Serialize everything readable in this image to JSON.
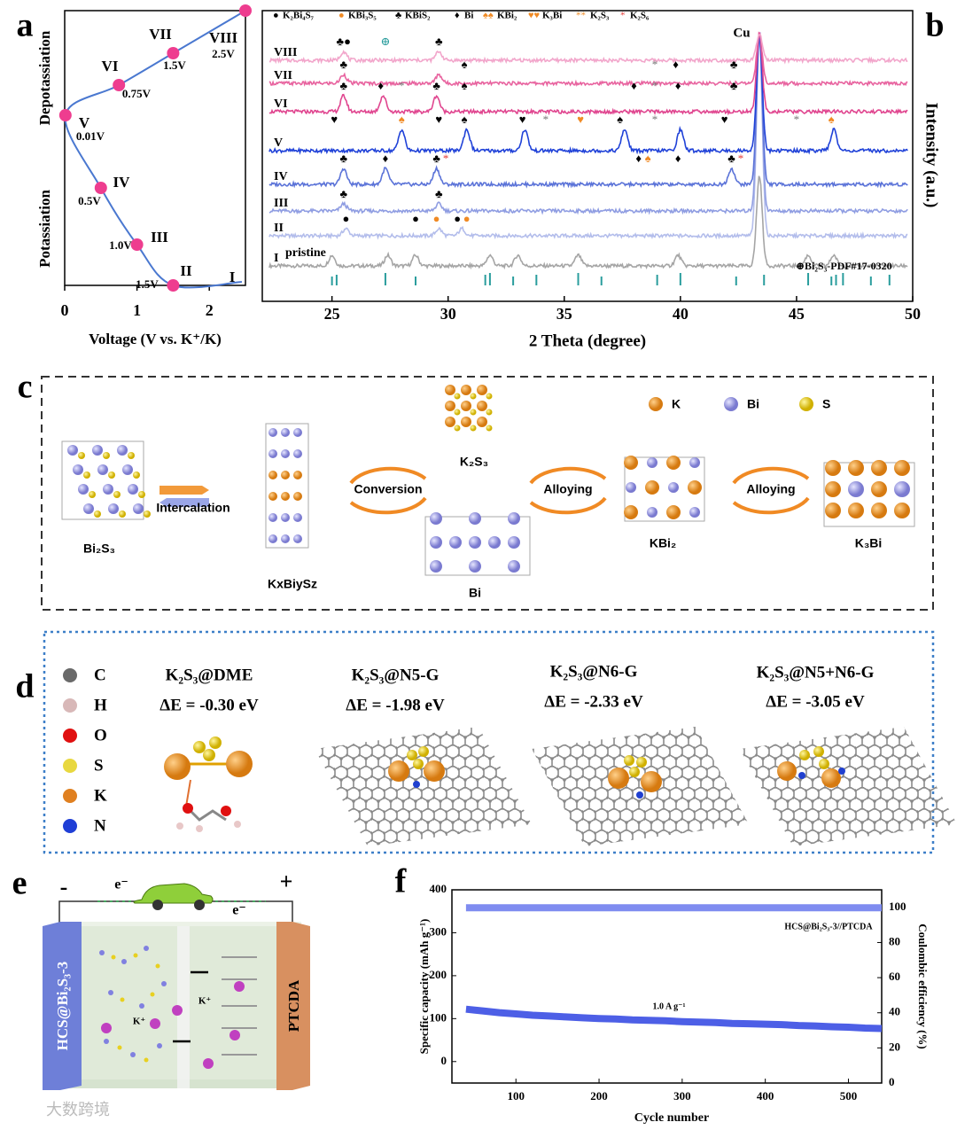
{
  "panel_labels": [
    "a",
    "b",
    "c",
    "d",
    "e",
    "f"
  ],
  "chart_data": [
    {
      "type": "line",
      "xlabel": "Voltage (V vs. K⁺/K)",
      "ylabel_top": "Depotassiation",
      "ylabel_bottom": "Potassiation",
      "categories": [
        "I",
        "II",
        "III",
        "IV",
        "V",
        "VI",
        "VII",
        "VIII"
      ],
      "x": [
        2.45,
        1.5,
        1.0,
        0.5,
        0.01,
        0.75,
        1.5,
        2.5
      ],
      "x_labels": [
        null,
        "1.5V",
        "1.0V",
        "0.5V",
        "0.01V",
        "0.75V",
        "1.5V",
        "2.5V"
      ],
      "xlim": [
        0,
        2.5
      ],
      "xticks": [
        0,
        1,
        2
      ],
      "color": "#4a78d0",
      "marker_color": "#ee3d8f"
    },
    {
      "type": "xrd",
      "xlabel": "2 Theta (degree)",
      "ylabel": "Intensity (a.u.)",
      "xlim": [
        22,
        50
      ],
      "xticks": [
        25,
        30,
        35,
        40,
        45,
        50
      ],
      "cu_peak": 43.4,
      "cu_label": "Cu",
      "pristine_label": "pristine",
      "series": [
        {
          "name": "I",
          "color": "#a5a5a5",
          "peaks": [
            25.0,
            27.4,
            28.6,
            31.8,
            33.0,
            35.6,
            39.9,
            45.5,
            46.6
          ]
        },
        {
          "name": "II",
          "color": "#b3bdeb",
          "peaks": [
            25.6,
            29.6,
            30.6
          ]
        },
        {
          "name": "III",
          "color": "#8f9de2",
          "peaks": [
            25.5,
            29.6
          ]
        },
        {
          "name": "IV",
          "color": "#5b73d8",
          "peaks": [
            25.5,
            27.3,
            29.5,
            42.2
          ]
        },
        {
          "name": "V",
          "color": "#2042d8",
          "peaks": [
            28.0,
            30.8,
            33.3,
            37.6,
            40.0,
            46.6
          ]
        },
        {
          "name": "VI",
          "color": "#e0458f",
          "peaks": [
            25.5,
            27.2,
            29.5
          ]
        },
        {
          "name": "VII",
          "color": "#e8639f",
          "peaks": [
            25.5,
            29.6
          ]
        },
        {
          "name": "VIII",
          "color": "#f2a6cb",
          "peaks": [
            25.5,
            29.6
          ]
        }
      ],
      "reference": {
        "label": "⊕Bi₂S₃-PDF#17-0320",
        "color": "#2a9d9d",
        "peaks": [
          25.0,
          25.2,
          27.3,
          28.6,
          31.6,
          31.8,
          32.8,
          33.8,
          35.6,
          36.6,
          39.0,
          40.0,
          42.4,
          43.6,
          45.5,
          46.5,
          46.7,
          47.0,
          48.2,
          49.0
        ]
      },
      "legend": [
        {
          "symbol": "●",
          "name": "K₂Bi₄S₇",
          "color": "#000000"
        },
        {
          "symbol": "●",
          "name": "KBi₃S₅",
          "color": "#f08a24"
        },
        {
          "symbol": "♣",
          "name": "KBiS₂",
          "color": "#000000"
        },
        {
          "symbol": "♦",
          "name": "Bi",
          "color": "#000000"
        },
        {
          "symbol": "♠♠",
          "name": "KBi₂",
          "color": "#f08a24"
        },
        {
          "symbol": "♥♥",
          "name": "K₃Bi",
          "color": "#f08a24"
        },
        {
          "symbol": "**",
          "name": "K₂S₃",
          "color": "#f08a24"
        },
        {
          "symbol": "*",
          "name": "K₂S₆",
          "color": "#e53935"
        }
      ],
      "annotations": [
        {
          "series": 7,
          "x": 25.5,
          "text": "♣●",
          "color": "#000000"
        },
        {
          "series": 7,
          "x": 27.3,
          "text": "⊕",
          "color": "#2a9d9d"
        },
        {
          "series": 7,
          "x": 29.6,
          "text": "♣",
          "color": "#000000"
        },
        {
          "series": 6,
          "x": 25.5,
          "text": "♣",
          "color": "#000000"
        },
        {
          "series": 6,
          "x": 30.7,
          "text": "♠",
          "color": "#000000"
        },
        {
          "series": 6,
          "x": 38.9,
          "text": "*",
          "color": "#777777"
        },
        {
          "series": 6,
          "x": 39.8,
          "text": "♦",
          "color": "#000000"
        },
        {
          "series": 6,
          "x": 42.3,
          "text": "♣",
          "color": "#000000"
        },
        {
          "series": 5,
          "x": 25.5,
          "text": "♣",
          "color": "#000000"
        },
        {
          "series": 5,
          "x": 27.1,
          "text": "♦",
          "color": "#000000"
        },
        {
          "series": 5,
          "x": 28.0,
          "text": "*",
          "color": "#777777"
        },
        {
          "series": 5,
          "x": 29.5,
          "text": "♣",
          "color": "#000000"
        },
        {
          "series": 5,
          "x": 30.7,
          "text": "♠",
          "color": "#000000"
        },
        {
          "series": 5,
          "x": 38.0,
          "text": "♦",
          "color": "#000000"
        },
        {
          "series": 5,
          "x": 38.9,
          "text": "*",
          "color": "#777777"
        },
        {
          "series": 5,
          "x": 39.9,
          "text": "♦",
          "color": "#000000"
        },
        {
          "series": 5,
          "x": 42.3,
          "text": "♣",
          "color": "#000000"
        },
        {
          "series": 4,
          "x": 25.1,
          "text": "♥",
          "color": "#000000"
        },
        {
          "series": 4,
          "x": 28.0,
          "text": "♠",
          "color": "#f08a24"
        },
        {
          "series": 4,
          "x": 29.6,
          "text": "♥",
          "color": "#000000"
        },
        {
          "series": 4,
          "x": 30.7,
          "text": "♠",
          "color": "#000000"
        },
        {
          "series": 4,
          "x": 33.2,
          "text": "♥",
          "color": "#000000"
        },
        {
          "series": 4,
          "x": 34.2,
          "text": "*",
          "color": "#777777"
        },
        {
          "series": 4,
          "x": 35.7,
          "text": "♥",
          "color": "#f08a24"
        },
        {
          "series": 4,
          "x": 37.4,
          "text": "♠",
          "color": "#000000"
        },
        {
          "series": 4,
          "x": 38.9,
          "text": "*",
          "color": "#777777"
        },
        {
          "series": 4,
          "x": 41.9,
          "text": "♥",
          "color": "#000000"
        },
        {
          "series": 4,
          "x": 45.0,
          "text": "*",
          "color": "#777777"
        },
        {
          "series": 4,
          "x": 46.5,
          "text": "♠",
          "color": "#f08a24"
        },
        {
          "series": 3,
          "x": 25.5,
          "text": "♣",
          "color": "#000000"
        },
        {
          "series": 3,
          "x": 27.3,
          "text": "♦",
          "color": "#000000"
        },
        {
          "series": 3,
          "x": 29.5,
          "text": "♣",
          "color": "#000000"
        },
        {
          "series": 3,
          "x": 29.9,
          "text": "*",
          "color": "#e53935"
        },
        {
          "series": 3,
          "x": 38.2,
          "text": "♦",
          "color": "#000000"
        },
        {
          "series": 3,
          "x": 38.6,
          "text": "♠",
          "color": "#f08a24"
        },
        {
          "series": 3,
          "x": 39.9,
          "text": "♦",
          "color": "#000000"
        },
        {
          "series": 3,
          "x": 42.2,
          "text": "♣",
          "color": "#000000"
        },
        {
          "series": 3,
          "x": 42.6,
          "text": "*",
          "color": "#e53935"
        },
        {
          "series": 2,
          "x": 25.5,
          "text": "♣",
          "color": "#000000"
        },
        {
          "series": 2,
          "x": 29.6,
          "text": "♣",
          "color": "#000000"
        },
        {
          "series": 1,
          "x": 25.6,
          "text": "●",
          "color": "#000000"
        },
        {
          "series": 1,
          "x": 28.6,
          "text": "●",
          "color": "#000000"
        },
        {
          "series": 1,
          "x": 29.5,
          "text": "●",
          "color": "#f08a24"
        },
        {
          "series": 1,
          "x": 30.4,
          "text": "●",
          "color": "#000000"
        },
        {
          "series": 1,
          "x": 30.8,
          "text": "●",
          "color": "#f08a24"
        }
      ]
    },
    {
      "type": "line",
      "xlabel": "Cycle number",
      "ylabel": "Specific capacity (mAh g⁻¹)",
      "y2label": "Coulombic efficiency (%)",
      "annotations": [
        "HCS@Bi₂S₃-3//PTCDA",
        "1.0 A g⁻¹"
      ],
      "xlim": [
        23,
        540
      ],
      "xticks": [
        100,
        200,
        300,
        400,
        500
      ],
      "ylim": [
        -50,
        400
      ],
      "yticks": [
        0,
        100,
        200,
        300,
        400
      ],
      "y2lim": [
        0,
        110
      ],
      "y2ticks": [
        0,
        20,
        40,
        60,
        80,
        100
      ],
      "x": [
        40,
        60,
        80,
        100,
        120,
        140,
        160,
        180,
        200,
        220,
        240,
        260,
        280,
        300,
        320,
        340,
        360,
        380,
        400,
        420,
        440,
        460,
        480,
        500,
        520,
        540
      ],
      "series": [
        {
          "color": "#4d5fe6",
          "values": [
            122,
            118,
            114,
            111,
            108,
            106,
            104,
            102,
            100,
            99,
            97,
            96,
            95,
            93,
            92,
            91,
            89,
            88,
            87,
            86,
            84,
            83,
            81,
            80,
            78,
            77
          ]
        },
        {
          "color": "#7f8cf0",
          "axis": "y2",
          "values": [
            99.8,
            99.8,
            99.8,
            99.8,
            99.8,
            99.8,
            99.8,
            99.8,
            99.8,
            99.8,
            99.8,
            99.8,
            99.8,
            99.8,
            99.8,
            99.8,
            99.8,
            99.8,
            99.8,
            99.8,
            99.8,
            99.8,
            99.8,
            99.8,
            99.8,
            99.8
          ]
        }
      ]
    }
  ],
  "scheme_c": {
    "legend": [
      "K",
      "Bi",
      "S"
    ],
    "labels": [
      "Bi₂S₃",
      "Intercalation",
      "KxBiySz",
      "Conversion",
      "K₂S₃",
      "Bi",
      "Alloying",
      "KBi₂",
      "Alloying",
      "K₃Bi"
    ]
  },
  "structures_d": {
    "elements": [
      "C",
      "H",
      "O",
      "S",
      "K",
      "N"
    ],
    "models": [
      {
        "name": "K₂S₃@DME",
        "energy": "ΔE = -0.30 eV"
      },
      {
        "name": "K₂S₃@N5-G",
        "energy": "ΔE = -1.98 eV"
      },
      {
        "name": "K₂S₃@N6-G",
        "energy": "ΔE = -2.33 eV"
      },
      {
        "name": "K₂S₃@N5+N6-G",
        "energy": "ΔE = -3.05 eV"
      }
    ]
  },
  "battery_e": {
    "minus": "-",
    "plus": "+",
    "electron": "e⁻",
    "anode": "HCS@Bi₂S₃-3",
    "cathode": "PTCDA",
    "ion": "K⁺"
  },
  "watermark": "大数跨境"
}
